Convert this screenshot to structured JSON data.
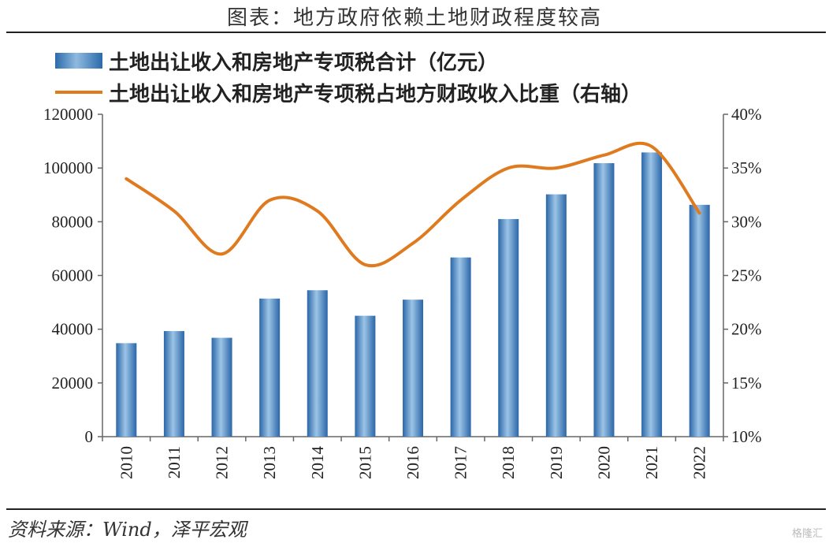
{
  "title": "图表：地方政府依赖土地财政程度较高",
  "source": "资料来源：Wind，泽平宏观",
  "watermark": "格隆汇",
  "colors": {
    "bar": "#2f6fb0",
    "line": "#e07a1f",
    "axis": "#666666"
  },
  "chart_data": {
    "type": "bar",
    "categories": [
      "2010",
      "2011",
      "2012",
      "2013",
      "2014",
      "2015",
      "2016",
      "2017",
      "2018",
      "2019",
      "2020",
      "2021",
      "2022"
    ],
    "series": [
      {
        "name": "土地出让收入和房地产专项税合计（亿元）",
        "type": "bar",
        "axis": "left",
        "values": [
          34800,
          39300,
          36800,
          51400,
          54500,
          45000,
          51000,
          66700,
          81000,
          90200,
          101800,
          105800,
          86300
        ]
      },
      {
        "name": "土地出让收入和房地产专项税占地方财政收入比重（右轴）",
        "type": "line",
        "axis": "right",
        "values": [
          34.0,
          31.0,
          27.0,
          32.0,
          31.0,
          26.0,
          28.0,
          32.0,
          35.0,
          35.0,
          36.2,
          37.0,
          30.8
        ]
      }
    ],
    "y_left": {
      "range": [
        0,
        120000
      ],
      "ticks": [
        "0",
        "20000",
        "40000",
        "60000",
        "80000",
        "100000",
        "120000"
      ]
    },
    "y_right": {
      "range": [
        10,
        40
      ],
      "ticks": [
        "10%",
        "15%",
        "20%",
        "25%",
        "30%",
        "35%",
        "40%"
      ]
    },
    "grid": false,
    "legend": "top-left"
  }
}
